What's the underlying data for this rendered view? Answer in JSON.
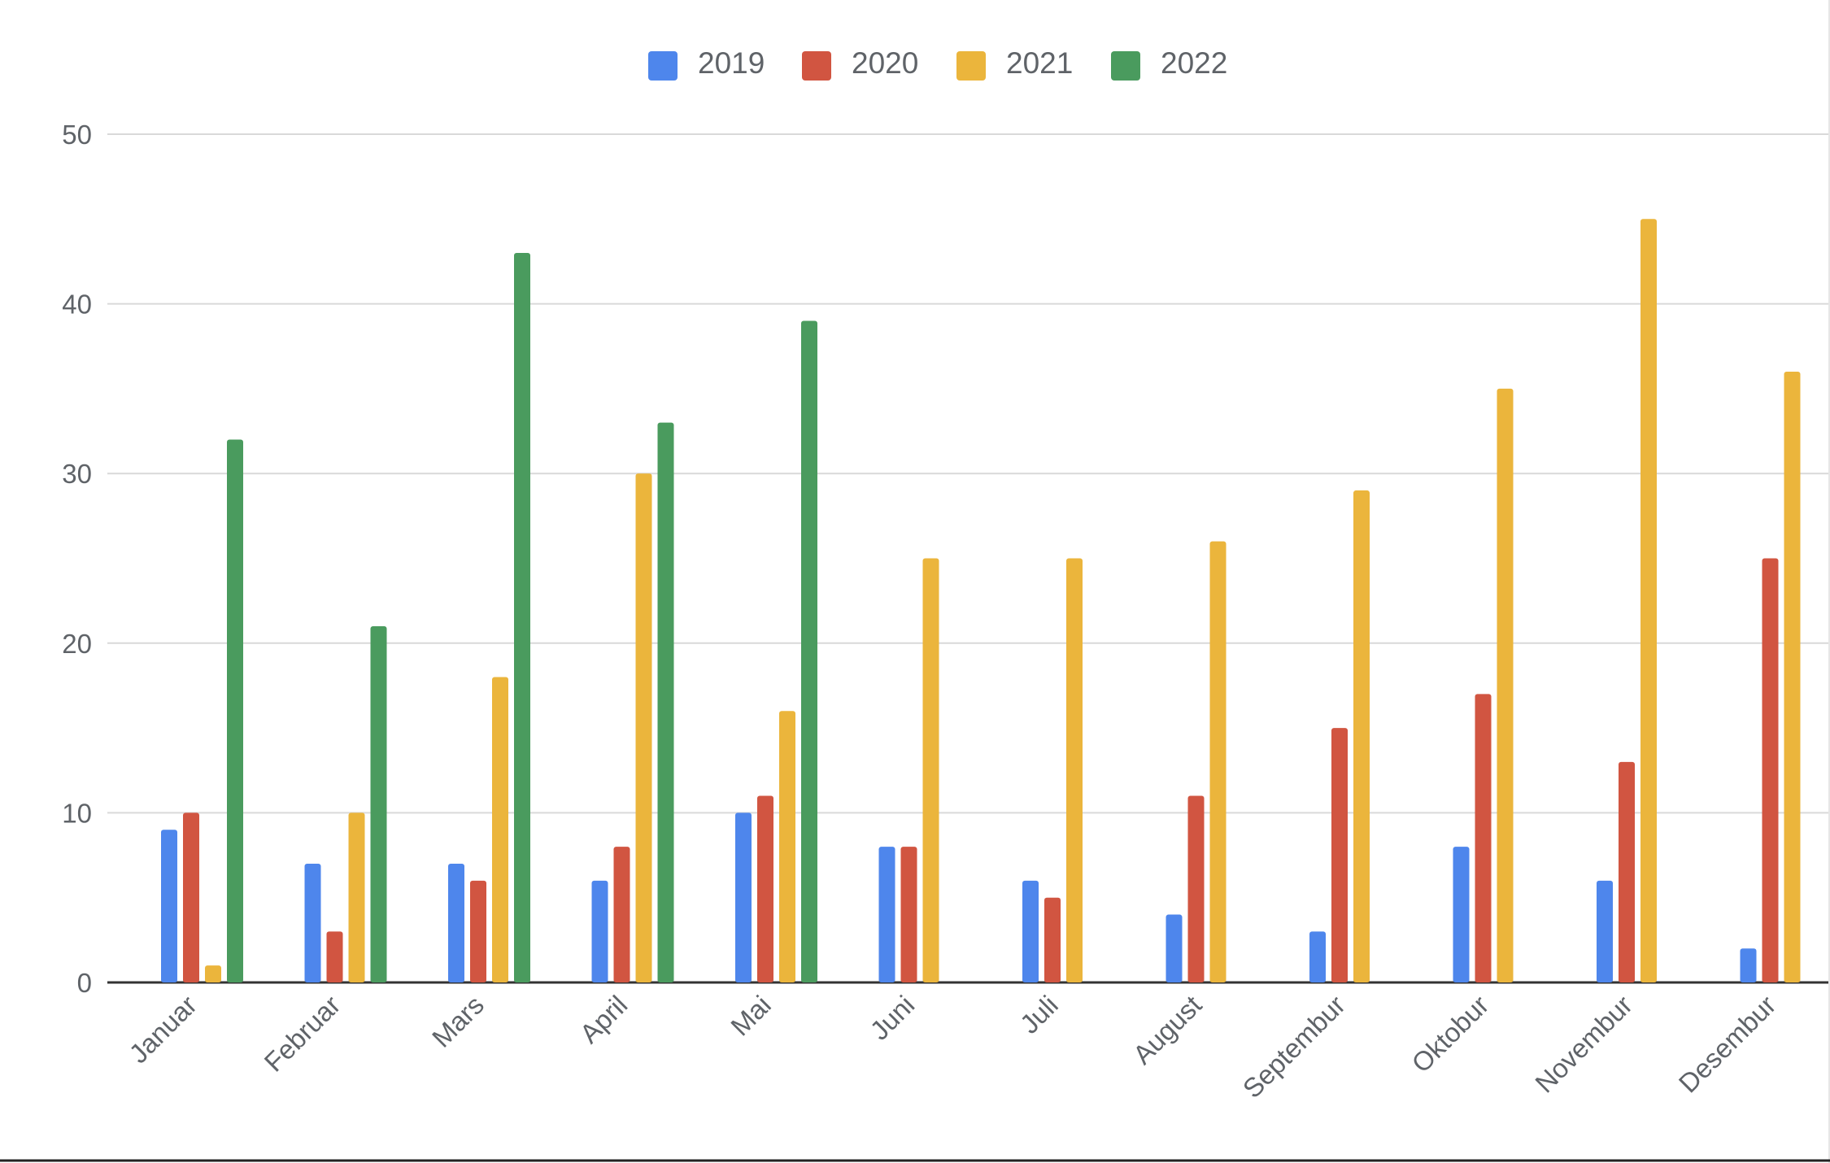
{
  "chart_data": {
    "type": "bar",
    "title": "",
    "xlabel": "",
    "ylabel": "",
    "ylim": [
      0,
      50
    ],
    "yticks": [
      0,
      10,
      20,
      30,
      40,
      50
    ],
    "grid": true,
    "legend_position": "top-center",
    "categories": [
      "Januar",
      "Februar",
      "Mars",
      "April",
      "Mai",
      "Juni",
      "Juli",
      "August",
      "Septembur",
      "Oktobur",
      "Novembur",
      "Desembur"
    ],
    "series": [
      {
        "name": "2019",
        "color": "#4e86ec",
        "values": [
          9,
          7,
          7,
          6,
          10,
          8,
          6,
          4,
          3,
          8,
          6,
          2
        ]
      },
      {
        "name": "2020",
        "color": "#d15541",
        "values": [
          10,
          3,
          6,
          8,
          11,
          8,
          5,
          11,
          15,
          17,
          13,
          25
        ]
      },
      {
        "name": "2021",
        "color": "#ebb53c",
        "values": [
          1,
          10,
          18,
          30,
          16,
          25,
          25,
          26,
          29,
          35,
          45,
          36
        ]
      },
      {
        "name": "2022",
        "color": "#4a9b5e",
        "values": [
          32,
          21,
          43,
          33,
          39,
          null,
          null,
          null,
          null,
          null,
          null,
          null
        ]
      }
    ]
  }
}
